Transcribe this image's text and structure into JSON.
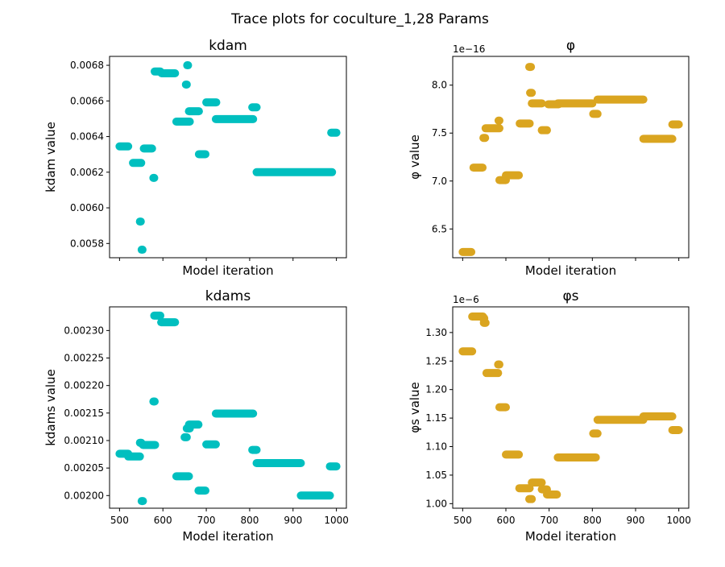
{
  "suptitle": "Trace plots for coculture_1,28 Params",
  "chart_data": [
    {
      "type": "scatter",
      "title": "kdam",
      "xlabel": "Model iteration",
      "ylabel": "kdam value",
      "color": "#00bfbf",
      "xlim": [
        477,
        1023
      ],
      "ylim": [
        0.00572,
        0.00685
      ],
      "yticks": [
        0.0058,
        0.006,
        0.0062,
        0.0064,
        0.0066,
        0.0068
      ],
      "ytick_labels": [
        "0.0058",
        "0.0060",
        "0.0062",
        "0.0064",
        "0.0066",
        "0.0068"
      ],
      "xticks": [
        500,
        600,
        700,
        800,
        900,
        1000
      ],
      "xtick_labels": [
        "",
        "",
        "",
        "",
        "",
        ""
      ],
      "offset_text": "",
      "segments": [
        {
          "x": [
            500,
            520
          ],
          "y": 0.006345
        },
        {
          "x": [
            531,
            550
          ],
          "y": 0.006252
        },
        {
          "x": [
            547,
            549
          ],
          "y": 0.005923
        },
        {
          "x": [
            551,
            553
          ],
          "y": 0.005765
        },
        {
          "x": [
            556,
            575
          ],
          "y": 0.006333
        },
        {
          "x": [
            578,
            580
          ],
          "y": 0.006168
        },
        {
          "x": [
            581,
            594
          ],
          "y": 0.006765
        },
        {
          "x": [
            597,
            628
          ],
          "y": 0.006755
        },
        {
          "x": [
            653,
            655
          ],
          "y": 0.006692
        },
        {
          "x": [
            656,
            658
          ],
          "y": 0.0068
        },
        {
          "x": [
            631,
            662
          ],
          "y": 0.006484
        },
        {
          "x": [
            660,
            683
          ],
          "y": 0.006542
        },
        {
          "x": [
            683,
            698
          ],
          "y": 0.006301
        },
        {
          "x": [
            700,
            723
          ],
          "y": 0.006592
        },
        {
          "x": [
            722,
            808
          ],
          "y": 0.006498
        },
        {
          "x": [
            806,
            816
          ],
          "y": 0.006564
        },
        {
          "x": [
            816,
            990
          ],
          "y": 0.0062
        },
        {
          "x": [
            988,
            1000
          ],
          "y": 0.006422
        }
      ]
    },
    {
      "type": "scatter",
      "title": "φ",
      "xlabel": "Model iteration",
      "ylabel": "φ value",
      "color": "#daa520",
      "xlim": [
        477,
        1023
      ],
      "ylim": [
        6.2,
        8.3
      ],
      "yticks": [
        6.5,
        7.0,
        7.5,
        8.0
      ],
      "ytick_labels": [
        "6.5",
        "7.0",
        "7.5",
        "8.0"
      ],
      "xticks": [
        500,
        600,
        700,
        800,
        900,
        1000
      ],
      "xtick_labels": [
        "",
        "",
        "",
        "",
        "",
        ""
      ],
      "offset_text": "1e−16",
      "segments": [
        {
          "x": [
            500,
            520
          ],
          "y": 6.26
        },
        {
          "x": [
            525,
            546
          ],
          "y": 7.14
        },
        {
          "x": [
            548,
            552
          ],
          "y": 7.45
        },
        {
          "x": [
            553,
            585
          ],
          "y": 7.55
        },
        {
          "x": [
            583,
            585
          ],
          "y": 7.63
        },
        {
          "x": [
            585,
            600
          ],
          "y": 7.01
        },
        {
          "x": [
            600,
            630
          ],
          "y": 7.06
        },
        {
          "x": [
            632,
            655
          ],
          "y": 7.6
        },
        {
          "x": [
            654,
            658
          ],
          "y": 8.19
        },
        {
          "x": [
            656,
            660
          ],
          "y": 7.92
        },
        {
          "x": [
            660,
            683
          ],
          "y": 7.81
        },
        {
          "x": [
            683,
            695
          ],
          "y": 7.53
        },
        {
          "x": [
            698,
            722
          ],
          "y": 7.8
        },
        {
          "x": [
            720,
            800
          ],
          "y": 7.81
        },
        {
          "x": [
            802,
            812
          ],
          "y": 7.7
        },
        {
          "x": [
            812,
            918
          ],
          "y": 7.85
        },
        {
          "x": [
            918,
            985
          ],
          "y": 7.44
        },
        {
          "x": [
            985,
            1000
          ],
          "y": 7.59
        }
      ]
    },
    {
      "type": "scatter",
      "title": "kdams",
      "xlabel": "Model iteration",
      "ylabel": "kdams value",
      "color": "#00bfbf",
      "xlim": [
        477,
        1023
      ],
      "ylim": [
        0.001977,
        0.002343
      ],
      "yticks": [
        0.002,
        0.00205,
        0.0021,
        0.00215,
        0.0022,
        0.00225,
        0.0023
      ],
      "ytick_labels": [
        "0.00200",
        "0.00205",
        "0.00210",
        "0.00215",
        "0.00220",
        "0.00225",
        "0.00230"
      ],
      "xticks": [
        500,
        600,
        700,
        800,
        900,
        1000
      ],
      "xtick_labels": [
        "500",
        "600",
        "700",
        "800",
        "900",
        "1000"
      ],
      "offset_text": "",
      "segments": [
        {
          "x": [
            500,
            520
          ],
          "y": 0.002076
        },
        {
          "x": [
            520,
            547
          ],
          "y": 0.002071
        },
        {
          "x": [
            547,
            550
          ],
          "y": 0.002096
        },
        {
          "x": [
            551,
            554
          ],
          "y": 0.00199
        },
        {
          "x": [
            554,
            582
          ],
          "y": 0.002092
        },
        {
          "x": [
            578,
            581
          ],
          "y": 0.002171
        },
        {
          "x": [
            580,
            594
          ],
          "y": 0.002327
        },
        {
          "x": [
            596,
            628
          ],
          "y": 0.002315
        },
        {
          "x": [
            631,
            660
          ],
          "y": 0.002035
        },
        {
          "x": [
            650,
            655
          ],
          "y": 0.002106
        },
        {
          "x": [
            655,
            662
          ],
          "y": 0.002122
        },
        {
          "x": [
            660,
            682
          ],
          "y": 0.002129
        },
        {
          "x": [
            682,
            698
          ],
          "y": 0.002009
        },
        {
          "x": [
            700,
            722
          ],
          "y": 0.002093
        },
        {
          "x": [
            722,
            808
          ],
          "y": 0.002149
        },
        {
          "x": [
            806,
            816
          ],
          "y": 0.002083
        },
        {
          "x": [
            816,
            918
          ],
          "y": 0.002059
        },
        {
          "x": [
            918,
            985
          ],
          "y": 0.002
        },
        {
          "x": [
            985,
            1000
          ],
          "y": 0.002053
        }
      ]
    },
    {
      "type": "scatter",
      "title": "φs",
      "xlabel": "Model iteration",
      "ylabel": "φs value",
      "color": "#daa520",
      "xlim": [
        477,
        1023
      ],
      "ylim": [
        0.992,
        1.345
      ],
      "yticks": [
        1.0,
        1.05,
        1.1,
        1.15,
        1.2,
        1.25,
        1.3
      ],
      "ytick_labels": [
        "1.00",
        "1.05",
        "1.10",
        "1.15",
        "1.20",
        "1.25",
        "1.30"
      ],
      "xticks": [
        500,
        600,
        700,
        800,
        900,
        1000
      ],
      "xtick_labels": [
        "500",
        "600",
        "700",
        "800",
        "900",
        "1000"
      ],
      "offset_text": "1e−6",
      "segments": [
        {
          "x": [
            500,
            522
          ],
          "y": 1.267
        },
        {
          "x": [
            522,
            547
          ],
          "y": 1.328
        },
        {
          "x": [
            547,
            550
          ],
          "y": 1.325
        },
        {
          "x": [
            549,
            553
          ],
          "y": 1.317
        },
        {
          "x": [
            555,
            582
          ],
          "y": 1.229
        },
        {
          "x": [
            582,
            585
          ],
          "y": 1.244
        },
        {
          "x": [
            585,
            600
          ],
          "y": 1.169
        },
        {
          "x": [
            600,
            630
          ],
          "y": 1.086
        },
        {
          "x": [
            631,
            655
          ],
          "y": 1.027
        },
        {
          "x": [
            654,
            660
          ],
          "y": 1.008
        },
        {
          "x": [
            660,
            683
          ],
          "y": 1.037
        },
        {
          "x": [
            683,
            695
          ],
          "y": 1.025
        },
        {
          "x": [
            695,
            718
          ],
          "y": 1.016
        },
        {
          "x": [
            720,
            808
          ],
          "y": 1.081
        },
        {
          "x": [
            802,
            812
          ],
          "y": 1.123
        },
        {
          "x": [
            812,
            918
          ],
          "y": 1.147
        },
        {
          "x": [
            918,
            985
          ],
          "y": 1.153
        },
        {
          "x": [
            985,
            1000
          ],
          "y": 1.129
        }
      ]
    }
  ]
}
